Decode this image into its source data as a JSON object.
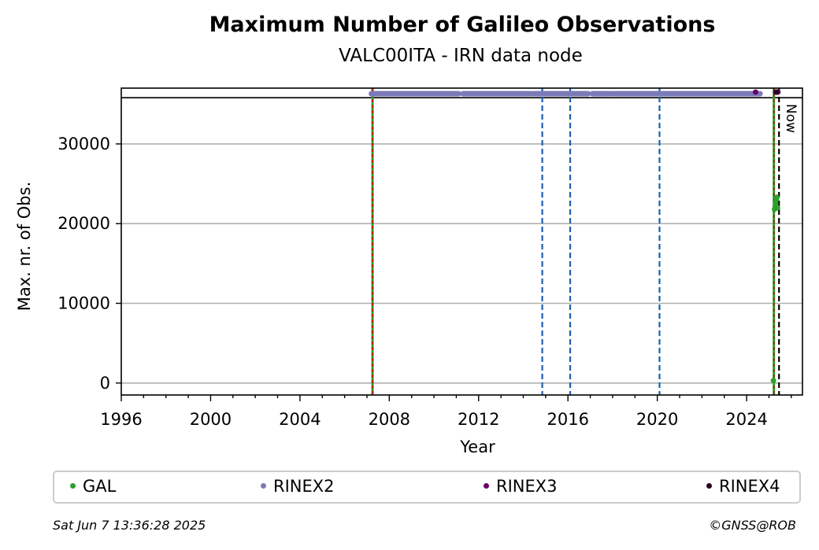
{
  "chart_data": {
    "type": "scatter",
    "title": "Maximum Number of Galileo Observations",
    "subtitle": "VALC00ITA - IRN data node",
    "xlabel": "Year",
    "ylabel": "Max. nr. of Obs.",
    "xlim": [
      1996,
      2026.5
    ],
    "ylim": [
      -1500,
      37000
    ],
    "x_ticks": [
      "1996",
      "2000",
      "2004",
      "2008",
      "2012",
      "2016",
      "2020",
      "2024"
    ],
    "y_ticks": [
      "0",
      "10000",
      "20000",
      "30000"
    ],
    "grid": "horizontal",
    "legend_position": "bottom",
    "series": [
      {
        "name": "GAL",
        "color": "#2ca02c",
        "points": [
          [
            2025.2,
            300
          ],
          [
            2025.25,
            21800
          ],
          [
            2025.28,
            22200
          ],
          [
            2025.3,
            22600
          ],
          [
            2025.33,
            23000
          ],
          [
            2025.35,
            23300
          ],
          [
            2025.38,
            22000
          ]
        ]
      },
      {
        "name": "RINEX2",
        "color": "#7b7bb8",
        "segments": [
          [
            2007.2,
            2011.1
          ],
          [
            2011.3,
            2014.3
          ],
          [
            2014.4,
            2016.9
          ],
          [
            2017.1,
            2018.0
          ],
          [
            2018.1,
            2024.6
          ]
        ],
        "y": 36300
      },
      {
        "name": "RINEX3",
        "color": "#6a006a",
        "points": [
          [
            2024.4,
            36500
          ],
          [
            2025.3,
            36500
          ],
          [
            2025.4,
            36500
          ]
        ]
      },
      {
        "name": "RINEX4",
        "color": "#2a0020",
        "points": [
          [
            2025.35,
            36500
          ]
        ]
      }
    ],
    "vertical_lines": [
      {
        "x": 2007.25,
        "kind": "green-red",
        "color": "#2ca02c",
        "color2": "#cc0000"
      },
      {
        "x": 2014.85,
        "kind": "blue-dashed",
        "color": "#1f5fb4"
      },
      {
        "x": 2016.1,
        "kind": "blue-dashed",
        "color": "#1f5fb4"
      },
      {
        "x": 2020.1,
        "kind": "blue-dashed",
        "color": "#1f5fb4"
      },
      {
        "x": 2025.22,
        "kind": "green-red",
        "color": "#2ca02c",
        "color2": "#cc0000"
      },
      {
        "x": 2025.45,
        "kind": "black-dashed",
        "color": "#000000"
      }
    ],
    "now_label": "Now",
    "now_x": 2025.45,
    "top_band_y": 35800
  },
  "footer": {
    "timestamp": "Sat Jun  7 13:36:28 2025",
    "credit": "©GNSS@ROB"
  }
}
